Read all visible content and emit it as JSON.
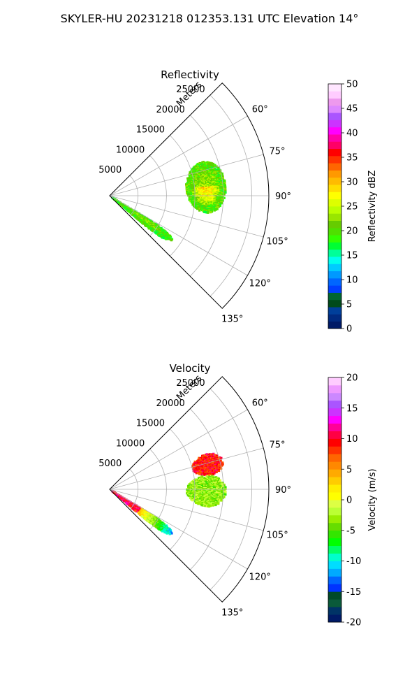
{
  "figure": {
    "suptitle": "SKYLER-HU  20231218  012353.131 UTC Elevation 14°"
  },
  "chart_data": [
    {
      "type": "polar-sector",
      "title": "Reflectivity",
      "radial_label": "Meters",
      "r_ticks": [
        "5000",
        "10000",
        "15000",
        "20000",
        "25000"
      ],
      "r_tick_values": [
        5000,
        10000,
        15000,
        20000,
        25000
      ],
      "rlim": [
        0,
        28000
      ],
      "theta_ticks": [
        "60°",
        "75°",
        "90°",
        "105°",
        "120°",
        "135°"
      ],
      "theta_tick_values": [
        60,
        75,
        90,
        105,
        120,
        135
      ],
      "thetalim": [
        45,
        135
      ],
      "grid": true,
      "colorbar": {
        "label": "Reflectivity dBZ",
        "ticks": [
          "0",
          "5",
          "10",
          "15",
          "20",
          "25",
          "30",
          "35",
          "40",
          "45",
          "50"
        ],
        "range": [
          0,
          50
        ]
      },
      "echoes": [
        {
          "theta": [
            70,
            100
          ],
          "r": [
            13500,
            20500
          ],
          "value": 20,
          "peak_value": 29
        },
        {
          "theta": [
            121,
            130
          ],
          "r": [
            500,
            13500
          ],
          "value": 19,
          "peak_value": 22
        }
      ]
    },
    {
      "type": "polar-sector",
      "title": "Velocity",
      "radial_label": "Meters",
      "r_ticks": [
        "5000",
        "10000",
        "15000",
        "20000",
        "25000"
      ],
      "r_tick_values": [
        5000,
        10000,
        15000,
        20000,
        25000
      ],
      "rlim": [
        0,
        28000
      ],
      "theta_ticks": [
        "60°",
        "75°",
        "90°",
        "105°",
        "120°",
        "135°"
      ],
      "theta_tick_values": [
        60,
        75,
        90,
        105,
        120,
        135
      ],
      "thetalim": [
        45,
        135
      ],
      "grid": true,
      "colorbar": {
        "label": "Velocity (m/s)",
        "ticks": [
          "-20",
          "-15",
          "-10",
          "-5",
          "0",
          "5",
          "10",
          "15",
          "20"
        ],
        "range": [
          -20,
          20
        ]
      },
      "echoes": [
        {
          "theta": [
            70,
            82
          ],
          "r": [
            15000,
            20500
          ],
          "value": 9
        },
        {
          "theta": [
            82,
            100
          ],
          "r": [
            13500,
            20500
          ],
          "value": -3
        },
        {
          "theta": [
            121,
            130
          ],
          "r": [
            500,
            13500
          ],
          "value": 10,
          "peak_value": 16,
          "min_value": -12
        }
      ]
    }
  ],
  "colors": {
    "reflectivity_scale": [
      "#001a66",
      "#002a80",
      "#003f9a",
      "#004a1a",
      "#006633",
      "#003fff",
      "#0066ff",
      "#0099ff",
      "#00ccff",
      "#00ffee",
      "#00ff99",
      "#00ff33",
      "#33ff00",
      "#4fe000",
      "#66cc00",
      "#99e600",
      "#bbff00",
      "#ddff00",
      "#ffff00",
      "#ffdd00",
      "#ffbb00",
      "#ff9900",
      "#ff6600",
      "#ff3300",
      "#ff0000",
      "#ff0066",
      "#ff00aa",
      "#ff00ff",
      "#cc33ff",
      "#aa55ff",
      "#dd88ff",
      "#ee99ee",
      "#ffccff",
      "#ffe6ff"
    ],
    "velocity_scale": [
      "#001a66",
      "#003366",
      "#0a5a3a",
      "#004a2a",
      "#0033ff",
      "#0066ff",
      "#00aaff",
      "#00ddff",
      "#00ffcc",
      "#00ff66",
      "#00ff00",
      "#33e600",
      "#66dd00",
      "#99ee00",
      "#bbff33",
      "#ddff44",
      "#ffff00",
      "#ffee00",
      "#ffcc00",
      "#ffaa00",
      "#ff8800",
      "#ff6600",
      "#ff3300",
      "#ff0000",
      "#ff0044",
      "#ff0099",
      "#ff00ff",
      "#cc33ff",
      "#aa55ff",
      "#cc88ff",
      "#ee99ff",
      "#ffccff"
    ]
  }
}
